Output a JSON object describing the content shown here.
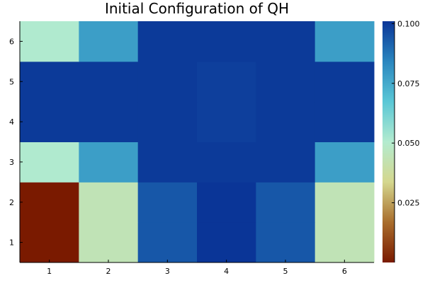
{
  "chart_data": {
    "type": "heatmap",
    "title": "Initial Configuration of QH",
    "xlabel": "",
    "ylabel": "",
    "x_categories": [
      "1",
      "2",
      "3",
      "4",
      "5",
      "6"
    ],
    "y_categories": [
      "1",
      "2",
      "3",
      "4",
      "5",
      "6"
    ],
    "values": [
      [
        0.0,
        0.044,
        0.094,
        0.101,
        0.094,
        0.044
      ],
      [
        0.0,
        0.044,
        0.094,
        0.101,
        0.094,
        0.044
      ],
      [
        0.051,
        0.078,
        0.1,
        0.1,
        0.1,
        0.078
      ],
      [
        0.1,
        0.1,
        0.1,
        0.099,
        0.1,
        0.1
      ],
      [
        0.1,
        0.1,
        0.1,
        0.099,
        0.1,
        0.1
      ],
      [
        0.051,
        0.078,
        0.1,
        0.1,
        0.1,
        0.078
      ]
    ],
    "colorbar": {
      "min": 0.0,
      "max": 0.101,
      "ticks": [
        0.025,
        0.05,
        0.075,
        0.1
      ],
      "tick_labels": [
        "0.025",
        "0.050",
        "0.075",
        "0.100"
      ],
      "colormap": [
        "#7a1a00",
        "#a96d2c",
        "#d4d78e",
        "#b3ebcf",
        "#5ac7d6",
        "#2a86bf",
        "#0a3597"
      ]
    },
    "grid": false,
    "colors": {
      "axis": "#000000",
      "background": "#ffffff"
    }
  }
}
